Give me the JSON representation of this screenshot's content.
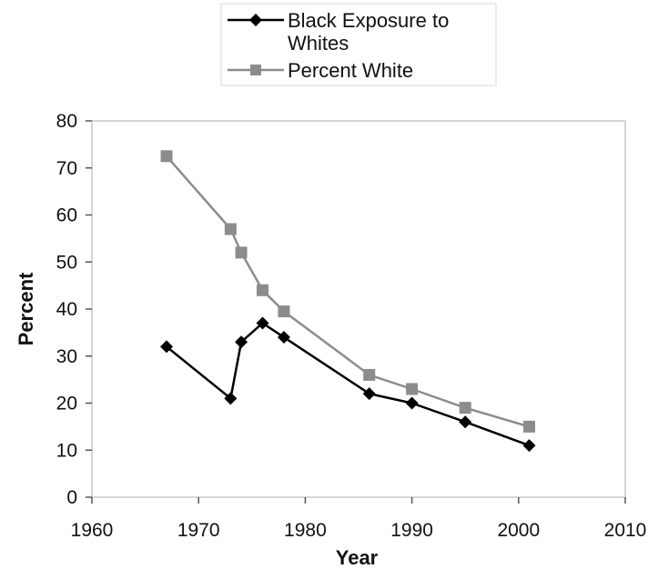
{
  "chart_data": {
    "type": "line",
    "title": "",
    "xlabel": "Year",
    "ylabel": "Percent",
    "xlim": [
      1960,
      2010
    ],
    "ylim": [
      0,
      80
    ],
    "xticks": [
      "1960",
      "1970",
      "1980",
      "1990",
      "2000",
      "2010"
    ],
    "yticks": [
      "0",
      "10",
      "20",
      "30",
      "40",
      "50",
      "60",
      "70",
      "80"
    ],
    "grid": false,
    "legend_position": "top-center",
    "series": [
      {
        "name": "Black Exposure to Whites",
        "name_lines": [
          "Black Exposure to",
          "Whites"
        ],
        "color": "#000000",
        "marker": "diamond",
        "x": [
          1967,
          1973,
          1974,
          1976,
          1978,
          1986,
          1990,
          1995,
          2001
        ],
        "y": [
          32,
          21,
          33,
          37,
          34,
          22,
          20,
          16,
          11
        ]
      },
      {
        "name": "Percent White",
        "name_lines": [
          "Percent White"
        ],
        "color": "#8c8c8c",
        "marker": "square",
        "x": [
          1967,
          1973,
          1974,
          1976,
          1978,
          1986,
          1990,
          1995,
          2001
        ],
        "y": [
          72.5,
          57,
          52,
          44,
          39.5,
          26,
          23,
          19,
          15
        ]
      }
    ]
  }
}
